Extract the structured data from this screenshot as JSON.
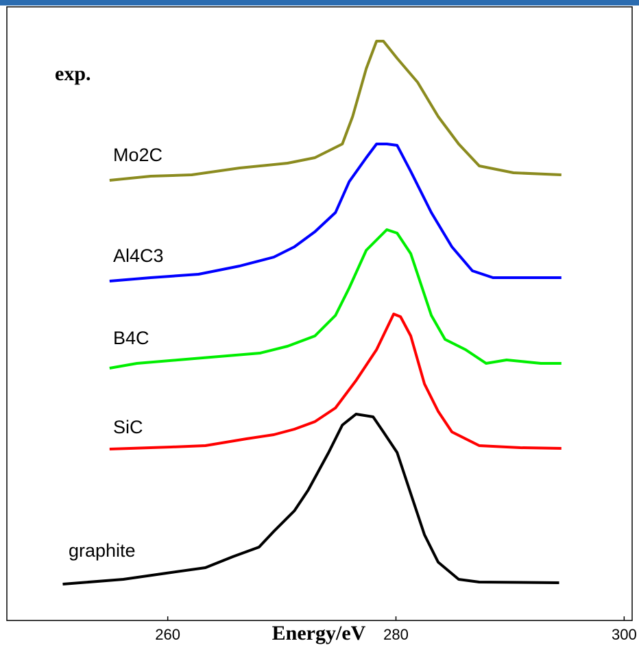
{
  "chart_data": {
    "type": "line",
    "annotation": "exp.",
    "xlabel": "Energy/eV",
    "xlim": [
      245.9,
      300.7
    ],
    "xticks": [
      260,
      280,
      300
    ],
    "ylim": [
      0,
      89.5
    ],
    "series": [
      {
        "name": "Mo2C",
        "color": "#8b8b1f",
        "x": [
          254.9,
          258.5,
          262.1,
          266.3,
          270.5,
          272.9,
          275.3,
          276.2,
          277.4,
          278.3,
          278.9,
          280.1,
          281.9,
          283.7,
          285.5,
          287.3,
          290.3,
          294.5
        ],
        "values": [
          64.2,
          64.8,
          65.0,
          66.0,
          66.7,
          67.5,
          69.5,
          73.5,
          80.5,
          84.5,
          84.5,
          82.0,
          78.5,
          73.5,
          69.5,
          66.3,
          65.3,
          65.0
        ]
      },
      {
        "name": "Al4C3",
        "color": "#0000ff",
        "x": [
          254.9,
          258.5,
          262.7,
          266.3,
          269.3,
          271.1,
          272.9,
          274.7,
          275.9,
          277.4,
          278.3,
          279.2,
          280.1,
          281.3,
          283.1,
          284.9,
          286.7,
          288.5,
          291.5,
          294.5
        ],
        "values": [
          49.5,
          50.0,
          50.5,
          51.7,
          53.0,
          54.5,
          56.7,
          59.5,
          64.0,
          67.5,
          69.5,
          69.5,
          69.3,
          65.5,
          59.5,
          54.5,
          51.0,
          50.0,
          50.0,
          50.0
        ]
      },
      {
        "name": "B4C",
        "color": "#00ee00",
        "x": [
          254.9,
          257.3,
          260.9,
          264.5,
          268.1,
          270.5,
          272.9,
          274.7,
          275.9,
          277.4,
          279.2,
          280.1,
          281.3,
          283.1,
          284.3,
          286.1,
          287.9,
          289.7,
          292.7,
          294.5
        ],
        "values": [
          36.8,
          37.5,
          38.0,
          38.5,
          39.0,
          40.0,
          41.5,
          44.5,
          48.5,
          54.0,
          57.0,
          56.5,
          53.5,
          44.5,
          41.0,
          39.5,
          37.5,
          38.0,
          37.5,
          37.5
        ]
      },
      {
        "name": "SiC",
        "color": "#ff0000",
        "x": [
          254.9,
          260.3,
          263.3,
          266.9,
          269.3,
          271.1,
          272.9,
          274.7,
          276.5,
          278.3,
          279.8,
          280.4,
          281.3,
          282.5,
          283.7,
          284.9,
          287.3,
          290.9,
          294.5
        ],
        "values": [
          25.0,
          25.3,
          25.5,
          26.5,
          27.1,
          27.9,
          29.0,
          31.0,
          35.0,
          39.5,
          44.7,
          44.3,
          41.5,
          34.5,
          30.5,
          27.5,
          25.5,
          25.2,
          25.1
        ]
      },
      {
        "name": "graphite",
        "color": "#000000",
        "x": [
          250.8,
          256.1,
          260.3,
          263.3,
          265.7,
          268.0,
          269.3,
          271.1,
          272.3,
          274.1,
          275.3,
          276.5,
          278.0,
          278.9,
          280.1,
          281.3,
          282.5,
          283.7,
          285.5,
          287.3,
          294.3
        ],
        "values": [
          5.3,
          6.0,
          7.0,
          7.7,
          9.3,
          10.7,
          13.0,
          16.0,
          19.0,
          24.5,
          28.5,
          30.1,
          29.7,
          27.5,
          24.5,
          18.5,
          12.5,
          8.5,
          6.0,
          5.6,
          5.5
        ]
      }
    ]
  }
}
